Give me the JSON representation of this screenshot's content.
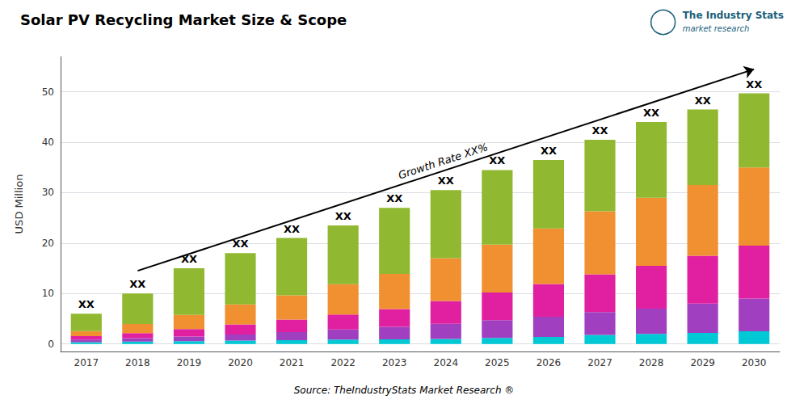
{
  "chart_data": {
    "type": "bar",
    "stacked": true,
    "title": "Solar PV Recycling Market Size & Scope",
    "ylabel": "USD Million",
    "source": "Source: TheIndustryStats Market Research ®",
    "logo_texts": [
      "The Industry Stats",
      "market research"
    ],
    "categories": [
      "2017",
      "2018",
      "2019",
      "2020",
      "2021",
      "2022",
      "2023",
      "2024",
      "2025",
      "2026",
      "2027",
      "2028",
      "2029",
      "2030"
    ],
    "series": [
      {
        "color": "#00c8d4",
        "values": [
          0.35,
          0.45,
          0.55,
          0.65,
          0.75,
          0.85,
          0.9,
          1.0,
          1.2,
          1.4,
          1.8,
          2.0,
          2.2,
          2.5
        ]
      },
      {
        "color": "#a040c0",
        "values": [
          0.5,
          0.7,
          0.9,
          1.2,
          1.6,
          2.0,
          2.5,
          3.0,
          3.5,
          4.0,
          4.5,
          5.0,
          5.8,
          6.5
        ]
      },
      {
        "color": "#e020a0",
        "values": [
          0.7,
          1.0,
          1.5,
          2.0,
          2.5,
          3.0,
          3.5,
          4.5,
          5.5,
          6.5,
          7.5,
          8.5,
          9.5,
          10.5
        ]
      },
      {
        "color": "#f09030",
        "values": [
          1.0,
          1.8,
          2.8,
          4.0,
          4.8,
          6.0,
          7.0,
          8.5,
          9.5,
          11.0,
          12.5,
          13.5,
          14.0,
          15.5
        ]
      },
      {
        "color": "#90b830",
        "values": [
          3.45,
          6.05,
          9.25,
          10.15,
          11.35,
          11.65,
          13.1,
          13.5,
          14.8,
          13.6,
          14.2,
          15.0,
          15.0,
          14.7
        ]
      }
    ],
    "bar_label": "XX",
    "annotations": [
      {
        "text": "Growth Rate XX%",
        "arrow_from": [
          "2018",
          14.5
        ],
        "arrow_to": [
          "2030",
          54.5
        ]
      }
    ],
    "ylim": [
      -1.5,
      57
    ],
    "yticks": [
      0,
      10,
      20,
      30,
      40,
      50
    ],
    "grid": true
  }
}
